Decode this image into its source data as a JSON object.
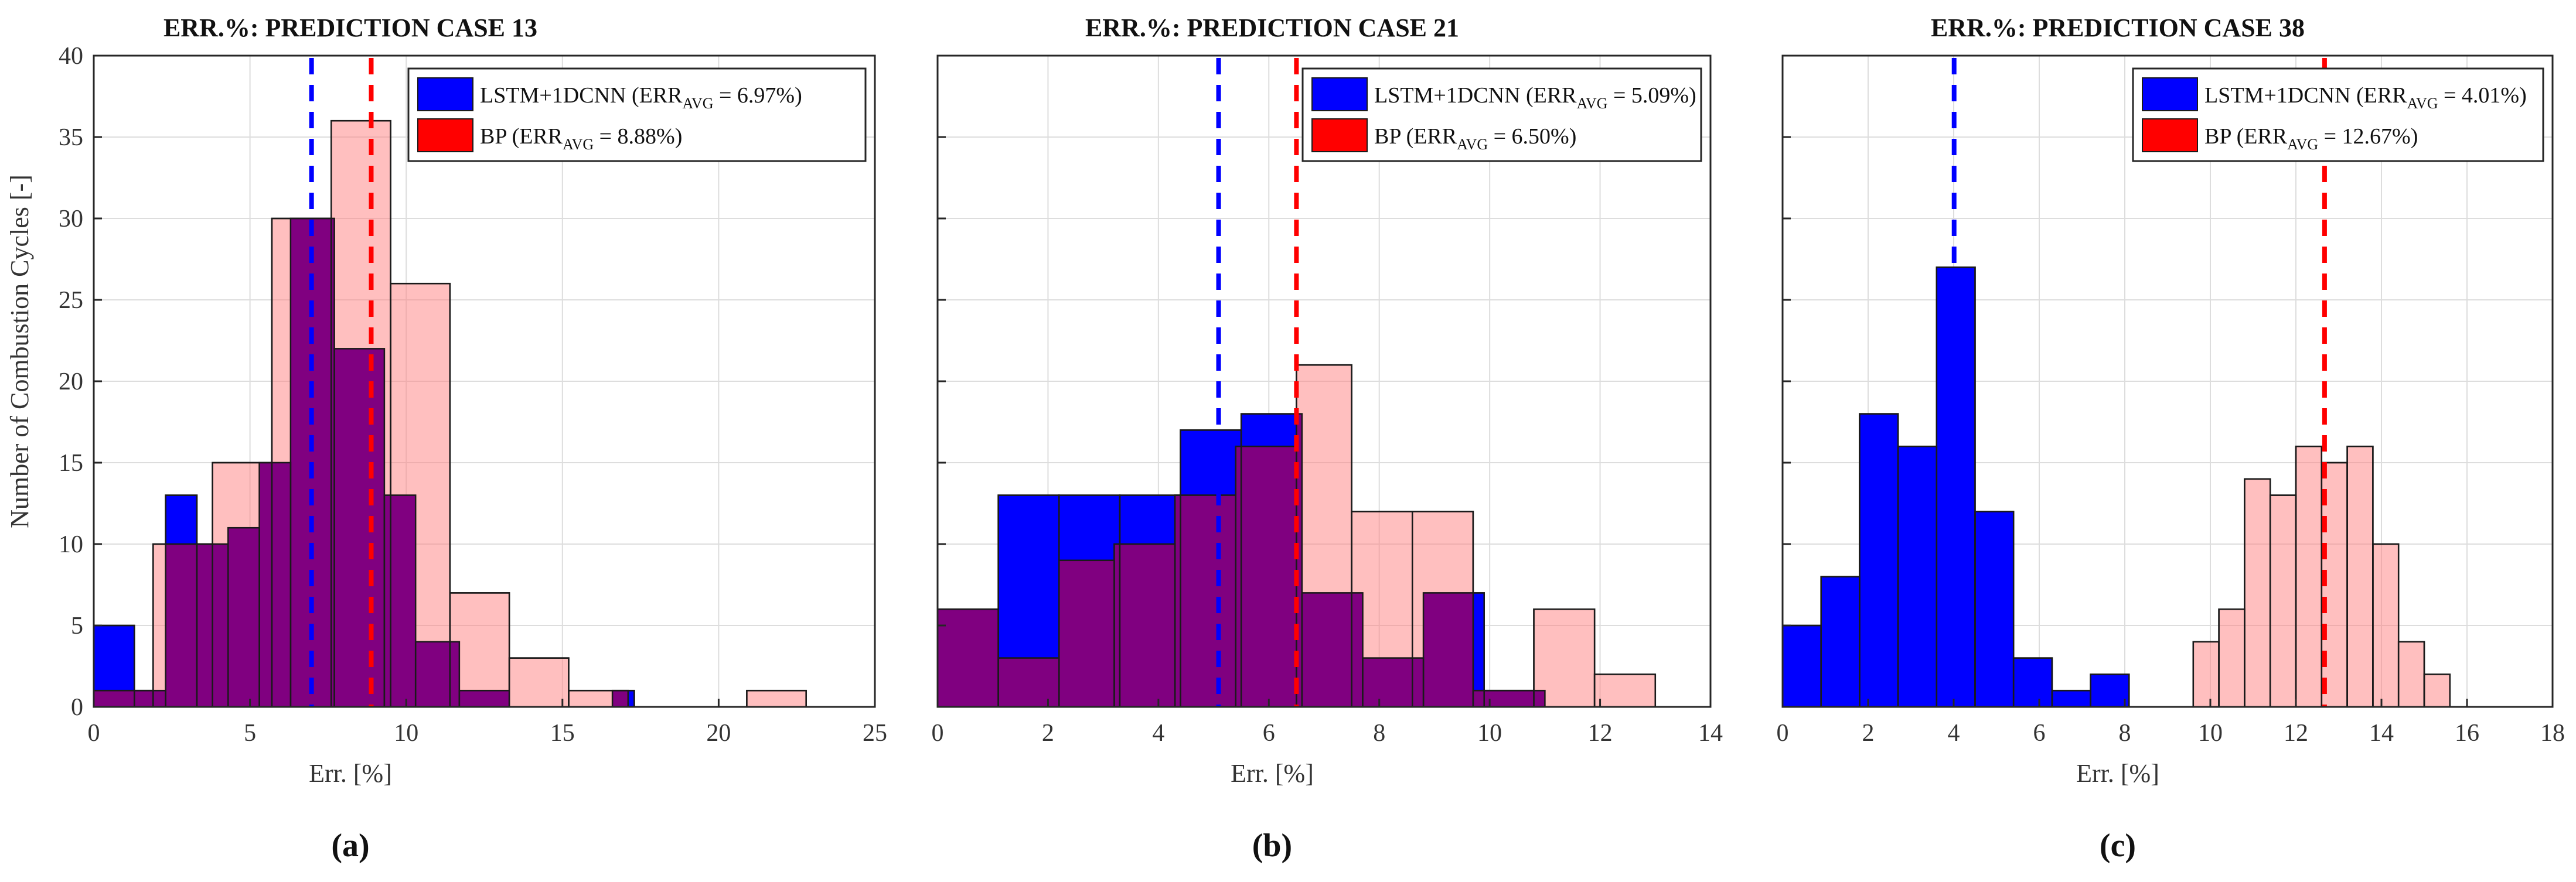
{
  "figure": {
    "ylabel": "Number of Combustion Cycles  [-]",
    "colors": {
      "lstm": "#0000ff",
      "bp": "#ff8080",
      "overlap": "#800080",
      "lstm_line": "#0000ff",
      "bp_line": "#ff0000",
      "grid": "#dddddd",
      "axis": "#262626"
    }
  },
  "chart_data": [
    {
      "type": "histogram",
      "title": "ERR.%: PREDICTION CASE 13",
      "caption": "(a)",
      "xlabel": "Err.  [%]",
      "xlim": [
        0,
        25
      ],
      "ylim": [
        0,
        40
      ],
      "xticks": [
        0,
        5,
        10,
        15,
        20,
        25
      ],
      "yticks": [
        0,
        5,
        10,
        15,
        20,
        25,
        30,
        35,
        40
      ],
      "show_yticklabels": true,
      "legend": {
        "position": "top-right",
        "entries": [
          {
            "series": "lstm",
            "prefix": "LSTM+1DCNN (ERR",
            "sub": "AVG",
            "suffix": " = 6.97%)"
          },
          {
            "series": "bp",
            "prefix": "BP (ERR",
            "sub": "AVG",
            "suffix": " = 8.88%)"
          }
        ]
      },
      "series": [
        {
          "name": "LSTM+1DCNN",
          "key": "lstm",
          "edges": [
            0,
            1.3,
            2.3,
            3.3,
            4.3,
            5.3,
            6.3,
            7.7,
            9.3,
            10.3,
            11.7,
            13.3,
            15.3,
            16.6,
            17.3,
            19.3
          ],
          "counts": [
            5,
            1,
            13,
            10,
            11,
            15,
            30,
            22,
            13,
            4,
            1,
            0,
            0,
            1,
            0
          ]
        },
        {
          "name": "BP",
          "key": "bp",
          "edges": [
            0,
            1.9,
            3.8,
            5.7,
            7.6,
            9.5,
            11.4,
            13.3,
            15.2,
            17.1,
            19.0,
            20.9,
            22.8,
            24.7
          ],
          "counts": [
            1,
            10,
            15,
            30,
            36,
            26,
            7,
            3,
            1,
            0,
            0,
            1,
            0
          ]
        }
      ],
      "vlines": [
        {
          "series": "lstm",
          "x": 6.97
        },
        {
          "series": "bp",
          "x": 8.88
        }
      ]
    },
    {
      "type": "histogram",
      "title": "ERR.%: PREDICTION CASE 21",
      "caption": "(b)",
      "xlabel": "Err.  [%]",
      "xlim": [
        0,
        14
      ],
      "ylim": [
        0,
        40
      ],
      "xticks": [
        0,
        2,
        4,
        6,
        8,
        10,
        12,
        14
      ],
      "yticks": [
        0,
        5,
        10,
        15,
        20,
        25,
        30,
        35,
        40
      ],
      "show_yticklabels": false,
      "legend": {
        "position": "top-right",
        "entries": [
          {
            "series": "lstm",
            "prefix": "LSTM+1DCNN (ERR",
            "sub": "AVG",
            "suffix": " = 5.09%)"
          },
          {
            "series": "bp",
            "prefix": "BP (ERR",
            "sub": "AVG",
            "suffix": " = 6.50%)"
          }
        ]
      },
      "series": [
        {
          "name": "LSTM+1DCNN",
          "key": "lstm",
          "edges": [
            0,
            1.1,
            2.2,
            3.3,
            4.4,
            5.5,
            6.6,
            7.7,
            8.8,
            9.9,
            11.0
          ],
          "counts": [
            6,
            13,
            13,
            13,
            17,
            18,
            7,
            3,
            7,
            1
          ]
        },
        {
          "name": "BP",
          "key": "bp",
          "edges": [
            0,
            1.1,
            2.2,
            3.2,
            4.3,
            5.4,
            6.5,
            7.5,
            8.6,
            9.7,
            10.8,
            11.9,
            13.0
          ],
          "counts": [
            6,
            3,
            9,
            10,
            13,
            16,
            21,
            12,
            12,
            1,
            6,
            2
          ]
        }
      ],
      "vlines": [
        {
          "series": "lstm",
          "x": 5.09
        },
        {
          "series": "bp",
          "x": 6.5
        }
      ]
    },
    {
      "type": "histogram",
      "title": "ERR.%: PREDICTION CASE 38",
      "caption": "(c)",
      "xlabel": "Err.  [%]",
      "xlim": [
        0,
        18
      ],
      "ylim": [
        0,
        40
      ],
      "xticks": [
        0,
        2,
        4,
        6,
        8,
        10,
        12,
        14,
        16,
        18
      ],
      "yticks": [
        0,
        5,
        10,
        15,
        20,
        25,
        30,
        35,
        40
      ],
      "show_yticklabels": false,
      "legend": {
        "position": "top-right",
        "entries": [
          {
            "series": "lstm",
            "prefix": "LSTM+1DCNN (ERR",
            "sub": "AVG",
            "suffix": " = 4.01%)"
          },
          {
            "series": "bp",
            "prefix": "BP (ERR",
            "sub": "AVG",
            "suffix": " = 12.67%)"
          }
        ]
      },
      "series": [
        {
          "name": "LSTM+1DCNN",
          "key": "lstm",
          "edges": [
            0,
            0.9,
            1.8,
            2.7,
            3.6,
            4.5,
            5.4,
            6.3,
            7.2,
            8.1,
            9.0
          ],
          "counts": [
            5,
            8,
            18,
            16,
            27,
            12,
            3,
            1,
            2,
            0
          ]
        },
        {
          "name": "BP",
          "key": "bp",
          "edges": [
            9.6,
            10.2,
            10.8,
            11.4,
            12.0,
            12.6,
            13.2,
            13.8,
            14.4,
            15.0,
            15.6,
            16.2
          ],
          "counts": [
            4,
            6,
            14,
            13,
            16,
            15,
            16,
            10,
            4,
            2,
            0
          ]
        }
      ],
      "vlines": [
        {
          "series": "lstm",
          "x": 4.01
        },
        {
          "series": "bp",
          "x": 12.67
        }
      ]
    }
  ]
}
